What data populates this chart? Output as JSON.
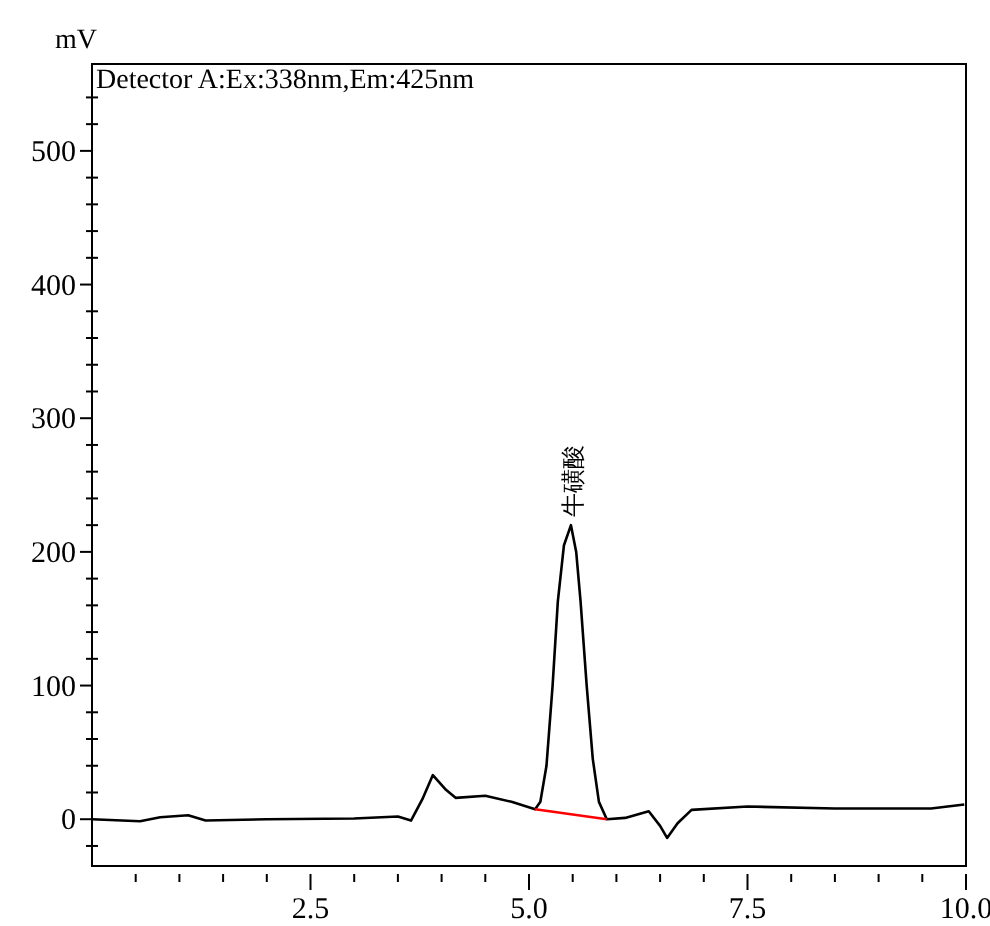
{
  "chart_data": {
    "type": "line",
    "title": "Detector A:Ex:338nm,Em:425nm",
    "ylabel": "mV",
    "xlim": [
      0,
      10
    ],
    "ylim": [
      -35,
      565
    ],
    "xticks": [
      {
        "value": 0.5,
        "label": null
      },
      {
        "value": 1,
        "label": null
      },
      {
        "value": 1.5,
        "label": null
      },
      {
        "value": 2,
        "label": null
      },
      {
        "value": 2.5,
        "label": "2.5"
      },
      {
        "value": 3,
        "label": null
      },
      {
        "value": 3.5,
        "label": null
      },
      {
        "value": 4,
        "label": null
      },
      {
        "value": 4.5,
        "label": null
      },
      {
        "value": 5,
        "label": "5.0"
      },
      {
        "value": 5.5,
        "label": null
      },
      {
        "value": 6,
        "label": null
      },
      {
        "value": 6.5,
        "label": null
      },
      {
        "value": 7,
        "label": null
      },
      {
        "value": 7.5,
        "label": "7.5"
      },
      {
        "value": 8,
        "label": null
      },
      {
        "value": 8.5,
        "label": null
      },
      {
        "value": 9,
        "label": null
      },
      {
        "value": 9.5,
        "label": null
      },
      {
        "value": 10,
        "label": "10.0"
      }
    ],
    "yticks": [
      {
        "value": -20,
        "label": null
      },
      {
        "value": 0,
        "label": "0"
      },
      {
        "value": 20,
        "label": null
      },
      {
        "value": 40,
        "label": null
      },
      {
        "value": 60,
        "label": null
      },
      {
        "value": 80,
        "label": null
      },
      {
        "value": 100,
        "label": "100"
      },
      {
        "value": 120,
        "label": null
      },
      {
        "value": 140,
        "label": null
      },
      {
        "value": 160,
        "label": null
      },
      {
        "value": 180,
        "label": null
      },
      {
        "value": 200,
        "label": "200"
      },
      {
        "value": 220,
        "label": null
      },
      {
        "value": 240,
        "label": null
      },
      {
        "value": 260,
        "label": null
      },
      {
        "value": 280,
        "label": null
      },
      {
        "value": 300,
        "label": "300"
      },
      {
        "value": 320,
        "label": null
      },
      {
        "value": 340,
        "label": null
      },
      {
        "value": 360,
        "label": null
      },
      {
        "value": 380,
        "label": null
      },
      {
        "value": 400,
        "label": "400"
      },
      {
        "value": 420,
        "label": null
      },
      {
        "value": 440,
        "label": null
      },
      {
        "value": 460,
        "label": null
      },
      {
        "value": 480,
        "label": null
      },
      {
        "value": 500,
        "label": "500"
      },
      {
        "value": 520,
        "label": null
      },
      {
        "value": 540,
        "label": null
      }
    ],
    "grid": false,
    "marker": "none",
    "line_style": "solid",
    "annotations": [
      {
        "text": "牛磺酸",
        "x": 5.48,
        "y": 220
      }
    ],
    "series": [
      {
        "color": "#000000",
        "x": [
          0,
          0.55,
          0.78,
          1.1,
          1.3,
          2.0,
          3.0,
          3.5,
          3.65,
          3.78,
          3.9,
          4.05,
          4.16,
          4.5,
          4.8,
          5.07,
          5.13,
          5.2,
          5.27,
          5.33,
          5.4,
          5.48,
          5.54,
          5.59,
          5.66,
          5.73,
          5.8,
          5.89,
          6.1,
          6.37,
          6.5,
          6.58,
          6.7,
          6.86,
          7.5,
          8.5,
          9.6,
          9.98
        ],
        "values": [
          0,
          -1.5,
          1.5,
          3,
          -1,
          0,
          0.5,
          2,
          -1,
          15,
          33,
          22,
          16,
          17.5,
          13,
          7.5,
          13,
          40,
          100,
          163,
          205,
          220,
          200,
          163,
          100,
          45,
          13,
          0,
          1,
          6,
          -5,
          -14,
          -3,
          7,
          9.5,
          8,
          8,
          11
        ]
      },
      {
        "color": "#ff0000",
        "x": [
          5.07,
          5.89
        ],
        "values": [
          7.5,
          0
        ]
      }
    ]
  }
}
